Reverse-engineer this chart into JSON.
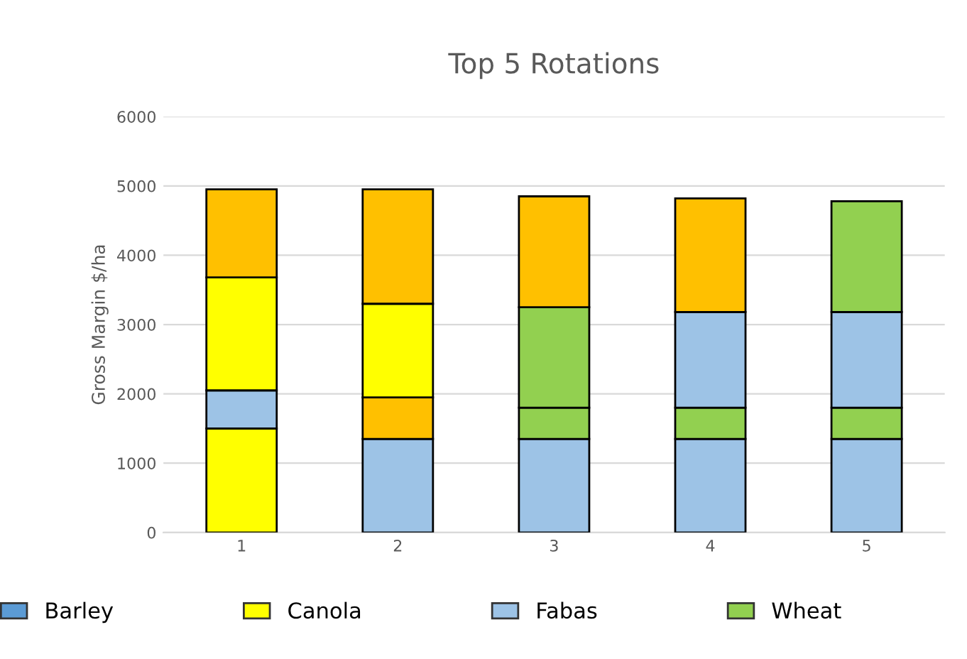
{
  "chart_data": {
    "type": "bar",
    "stacked": true,
    "title": "Top 5 Rotations",
    "ylabel": "Gross Margin $/ha",
    "categories": [
      "1",
      "2",
      "3",
      "4",
      "5"
    ],
    "series": [
      {
        "colors": [
          "#ffff00",
          "#9dc3e6",
          "#9dc3e6",
          "#9dc3e6",
          "#9dc3e6"
        ],
        "values": [
          1500,
          1350,
          1350,
          1350,
          1350
        ]
      },
      {
        "colors": [
          "#9dc3e6",
          "#ffc000",
          "#92d050",
          "#92d050",
          "#92d050"
        ],
        "values": [
          550,
          600,
          450,
          450,
          450
        ]
      },
      {
        "colors": [
          "#ffff00",
          "#ffff00",
          "#92d050",
          "#9dc3e6",
          "#9dc3e6"
        ],
        "values": [
          1630,
          1350,
          1450,
          1380,
          1380
        ]
      },
      {
        "colors": [
          "#ffc000",
          "#ffc000",
          "#ffc000",
          "#ffc000",
          "#92d050"
        ],
        "values": [
          1270,
          1650,
          1600,
          1640,
          1600
        ]
      },
      {
        "name": "Barley",
        "color": "#5b9bd5",
        "values": [
          null,
          null,
          null,
          null,
          null
        ]
      },
      {
        "name": "Canola",
        "color": "#ffff00",
        "values": [
          null,
          null,
          null,
          null,
          null
        ]
      },
      {
        "name": "Fabas",
        "color": "#9dc3e6",
        "values": [
          null,
          null,
          null,
          null,
          null
        ]
      },
      {
        "name": "Wheat",
        "color": "#92d050",
        "values": [
          null,
          null,
          null,
          null,
          null
        ]
      }
    ],
    "ylim": [
      0,
      6000
    ],
    "yticks": [
      0,
      1000,
      2000,
      3000,
      4000,
      5000,
      6000
    ],
    "grid": "y",
    "legend": "bottom"
  }
}
